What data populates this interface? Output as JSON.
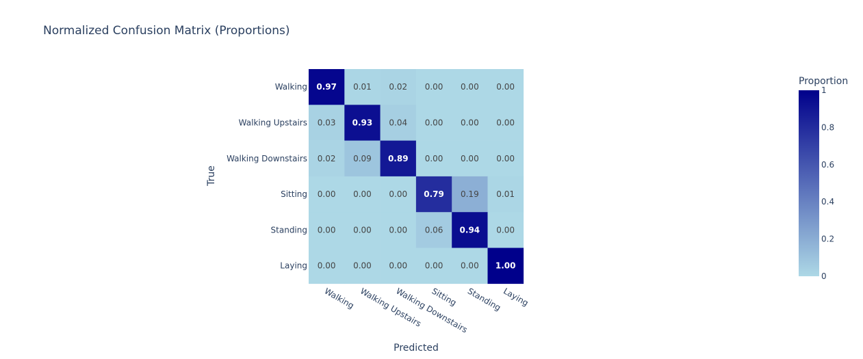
{
  "chart_data": {
    "type": "heatmap",
    "title": "Normalized Confusion Matrix (Proportions)",
    "xlabel": "Predicted",
    "ylabel": "True",
    "x_categories": [
      "Walking",
      "Walking Upstairs",
      "Walking Downstairs",
      "Sitting",
      "Standing",
      "Laying"
    ],
    "y_categories": [
      "Walking",
      "Walking Upstairs",
      "Walking Downstairs",
      "Sitting",
      "Standing",
      "Laying"
    ],
    "values": [
      [
        0.97,
        0.01,
        0.02,
        0.0,
        0.0,
        0.0
      ],
      [
        0.03,
        0.93,
        0.04,
        0.0,
        0.0,
        0.0
      ],
      [
        0.02,
        0.09,
        0.89,
        0.0,
        0.0,
        0.0
      ],
      [
        0.0,
        0.0,
        0.0,
        0.79,
        0.19,
        0.01
      ],
      [
        0.0,
        0.0,
        0.0,
        0.06,
        0.94,
        0.0
      ],
      [
        0.0,
        0.0,
        0.0,
        0.0,
        0.0,
        1.0
      ]
    ],
    "value_labels": [
      [
        "0.97",
        "0.01",
        "0.02",
        "0.00",
        "0.00",
        "0.00"
      ],
      [
        "0.03",
        "0.93",
        "0.04",
        "0.00",
        "0.00",
        "0.00"
      ],
      [
        "0.02",
        "0.09",
        "0.89",
        "0.00",
        "0.00",
        "0.00"
      ],
      [
        "0.00",
        "0.00",
        "0.00",
        "0.79",
        "0.19",
        "0.01"
      ],
      [
        "0.00",
        "0.00",
        "0.00",
        "0.06",
        "0.94",
        "0.00"
      ],
      [
        "0.00",
        "0.00",
        "0.00",
        "0.00",
        "0.00",
        "1.00"
      ]
    ],
    "colorbar": {
      "title": "Proportion",
      "range": [
        0,
        1
      ],
      "ticks": [
        0,
        0.2,
        0.4,
        0.6,
        0.8,
        1
      ],
      "tick_labels": [
        "0",
        "0.2",
        "0.4",
        "0.6",
        "0.8",
        "1"
      ]
    },
    "colorscale": [
      "#add8e6",
      "#00008b"
    ]
  }
}
